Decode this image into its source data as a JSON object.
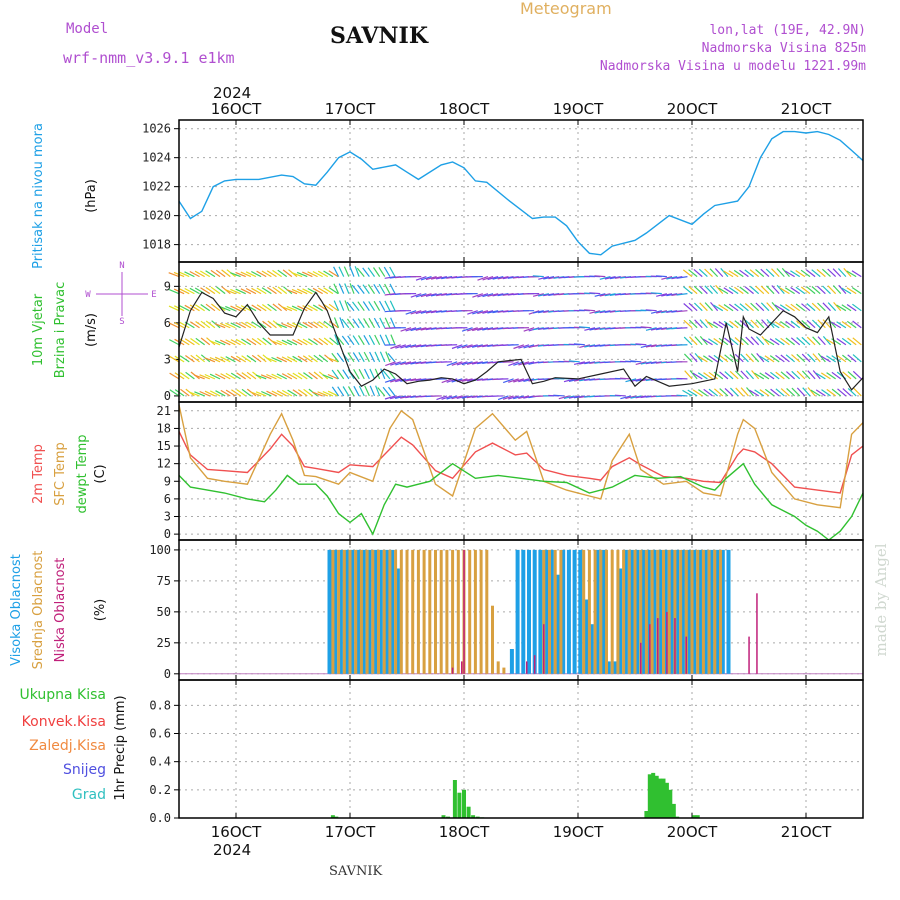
{
  "header": {
    "model_label": "Model",
    "model_name": "wrf-nmm_v3.9.1  e1km",
    "title": "SAVNIK",
    "product": "Meteogram",
    "location": "lon,lat (19E, 42.9N)",
    "elevation": "Nadmorska Visina 825m",
    "model_elevation": "Nadmorska Visina u modelu 1221.99m",
    "footer_title": "SAVNIK",
    "watermark": "made by Angel"
  },
  "colors": {
    "pressure": "#1ea0e6",
    "t2m": "#f05050",
    "sfc": "#d8a040",
    "dewpt": "#30c030",
    "high_cloud": "#1ea0e6",
    "mid_cloud": "#d8a040",
    "low_cloud": "#c0207a",
    "precip": "#30c030",
    "conv": "#f04040",
    "frozen": "#f08a40",
    "snow": "#5050e0",
    "hail": "#30c0c0",
    "title_purple": "#b04fd0",
    "meteogram_orange": "#e0b060"
  },
  "dates": {
    "year": "2024",
    "top": [
      "16OCT",
      "17OCT",
      "18OCT",
      "19OCT",
      "20OCT",
      "21OCT"
    ],
    "bottom": [
      "16OCT",
      "17OCT",
      "18OCT",
      "19OCT",
      "20OCT",
      "21OCT"
    ]
  },
  "chart_data": [
    {
      "type": "line",
      "panel": "pressure",
      "ylabel_main": "Pritisak na nivou mora",
      "unit": "(hPa)",
      "ylim": [
        1016.8,
        1026.6
      ],
      "yticks": [
        1018,
        1020,
        1022,
        1024,
        1026
      ],
      "x_range_days": [
        15.5,
        21.5
      ],
      "series": [
        {
          "values_x_days": [
            15.5,
            15.6,
            15.7,
            15.8,
            15.9,
            16.0,
            16.2,
            16.4,
            16.5,
            16.6,
            16.7,
            16.8,
            16.9,
            17.0,
            17.1,
            17.2,
            17.4,
            17.5,
            17.6,
            17.8,
            17.9,
            18.0,
            18.1,
            18.2,
            18.4,
            18.6,
            18.7,
            18.8,
            18.9,
            19.0,
            19.1,
            19.2,
            19.3,
            19.5,
            19.6,
            19.8,
            20.0,
            20.1,
            20.2,
            20.4,
            20.5,
            20.6,
            20.7,
            20.8,
            20.9,
            21.0,
            21.1,
            21.2,
            21.3,
            21.4,
            21.5
          ],
          "values": [
            1021.0,
            1019.8,
            1020.3,
            1022.0,
            1022.4,
            1022.5,
            1022.5,
            1022.8,
            1022.7,
            1022.2,
            1022.1,
            1023.0,
            1024.0,
            1024.4,
            1023.9,
            1023.2,
            1023.5,
            1023.0,
            1022.5,
            1023.5,
            1023.7,
            1023.3,
            1022.4,
            1022.3,
            1021.0,
            1019.8,
            1019.9,
            1019.9,
            1019.3,
            1018.2,
            1017.4,
            1017.3,
            1017.9,
            1018.3,
            1018.8,
            1020.0,
            1019.4,
            1020.1,
            1020.7,
            1021.0,
            1022.0,
            1024.0,
            1025.3,
            1025.8,
            1025.8,
            1025.7,
            1025.8,
            1025.6,
            1025.2,
            1024.5,
            1023.8
          ]
        }
      ]
    },
    {
      "type": "line",
      "panel": "wind",
      "ylabel_main": "10m Vjetar",
      "ylabel_sub": "Brzina i Pravac",
      "unit": "(m/s)",
      "compass": [
        "N",
        "W",
        "E",
        "S"
      ],
      "ylim": [
        -0.5,
        11
      ],
      "yticks": [
        0,
        3,
        6,
        9
      ],
      "series": [
        {
          "name": "speed",
          "values_x_days": [
            15.5,
            15.6,
            15.7,
            15.8,
            15.9,
            16.0,
            16.1,
            16.2,
            16.3,
            16.5,
            16.6,
            16.7,
            16.75,
            16.8,
            16.9,
            17.0,
            17.1,
            17.2,
            17.3,
            17.4,
            17.5,
            17.6,
            17.7,
            17.8,
            17.9,
            18.0,
            18.1,
            18.2,
            18.3,
            18.5,
            18.6,
            18.7,
            18.8,
            19.0,
            19.2,
            19.4,
            19.5,
            19.6,
            19.8,
            20.0,
            20.2,
            20.3,
            20.4,
            20.45,
            20.5,
            20.6,
            20.7,
            20.8,
            20.9,
            21.0,
            21.1,
            21.2,
            21.3,
            21.4,
            21.5
          ],
          "values": [
            4.0,
            7.0,
            8.5,
            8.0,
            6.8,
            6.5,
            7.5,
            6.0,
            5.0,
            5.0,
            7.2,
            8.5,
            7.8,
            7.0,
            4.5,
            2.0,
            0.8,
            1.3,
            2.2,
            1.8,
            1.0,
            1.2,
            1.3,
            1.5,
            1.4,
            1.0,
            1.3,
            2.0,
            2.8,
            3.0,
            1.0,
            1.2,
            1.5,
            1.4,
            1.8,
            2.2,
            0.8,
            1.6,
            0.8,
            1.0,
            1.4,
            6.0,
            2.0,
            6.5,
            5.5,
            5.0,
            6.0,
            7.0,
            6.5,
            5.6,
            5.2,
            6.5,
            2.0,
            0.5,
            1.5
          ]
        }
      ]
    },
    {
      "type": "line",
      "panel": "temperature",
      "ylabel_t2m": "2m Temp",
      "ylabel_sfc": "SFC Temp",
      "ylabel_dew": "dewpt Temp",
      "unit": "(C)",
      "ylim": [
        -1,
        22.5
      ],
      "yticks": [
        0,
        3,
        6,
        9,
        12,
        15,
        18,
        21
      ],
      "series": [
        {
          "name": "2m Temp",
          "values_x_days": [
            15.5,
            15.6,
            15.75,
            15.9,
            16.1,
            16.3,
            16.4,
            16.5,
            16.6,
            16.7,
            16.9,
            17.0,
            17.2,
            17.35,
            17.45,
            17.55,
            17.75,
            17.9,
            18.1,
            18.25,
            18.45,
            18.55,
            18.7,
            18.9,
            19.1,
            19.2,
            19.3,
            19.45,
            19.55,
            19.75,
            19.95,
            20.1,
            20.25,
            20.4,
            20.45,
            20.55,
            20.7,
            20.9,
            21.1,
            21.3,
            21.4,
            21.5
          ],
          "values": [
            17.5,
            13.5,
            11.0,
            10.8,
            10.5,
            14.5,
            17.0,
            15.0,
            11.5,
            11.2,
            10.5,
            11.8,
            11.5,
            14.5,
            16.5,
            15.2,
            10.8,
            9.5,
            14.0,
            15.5,
            13.5,
            13.8,
            11.0,
            10.0,
            9.5,
            9.2,
            11.5,
            13.0,
            11.8,
            9.8,
            9.5,
            9.0,
            8.8,
            13.5,
            14.5,
            14.0,
            12.0,
            8.0,
            7.5,
            7.0,
            13.5,
            15.0
          ]
        },
        {
          "name": "SFC Temp",
          "values_x_days": [
            15.5,
            15.6,
            15.75,
            15.9,
            16.1,
            16.3,
            16.4,
            16.5,
            16.6,
            16.7,
            16.9,
            17.0,
            17.2,
            17.35,
            17.45,
            17.55,
            17.75,
            17.9,
            18.1,
            18.25,
            18.45,
            18.55,
            18.7,
            18.9,
            19.1,
            19.2,
            19.3,
            19.45,
            19.55,
            19.75,
            19.95,
            20.1,
            20.25,
            20.4,
            20.45,
            20.55,
            20.7,
            20.9,
            21.1,
            21.3,
            21.4,
            21.5
          ],
          "values": [
            22.0,
            13.0,
            9.5,
            9.0,
            8.5,
            17.0,
            20.5,
            16.0,
            10.0,
            9.8,
            8.5,
            10.5,
            9.0,
            18.0,
            21.0,
            19.5,
            8.5,
            6.5,
            18.0,
            20.5,
            16.0,
            17.5,
            9.0,
            7.5,
            6.5,
            6.0,
            12.5,
            17.0,
            11.0,
            8.5,
            9.0,
            7.0,
            6.5,
            17.0,
            19.5,
            18.0,
            10.5,
            6.0,
            5.0,
            4.5,
            17.0,
            19.0
          ]
        },
        {
          "name": "dewpt Temp",
          "values_x_days": [
            15.5,
            15.6,
            15.75,
            15.9,
            16.1,
            16.25,
            16.35,
            16.45,
            16.55,
            16.7,
            16.8,
            16.9,
            17.0,
            17.1,
            17.2,
            17.3,
            17.4,
            17.5,
            17.6,
            17.7,
            17.9,
            18.1,
            18.3,
            18.5,
            18.7,
            18.9,
            19.1,
            19.3,
            19.5,
            19.7,
            19.9,
            20.1,
            20.2,
            20.3,
            20.45,
            20.55,
            20.7,
            20.9,
            21.0,
            21.1,
            21.2,
            21.3,
            21.4,
            21.5
          ],
          "values": [
            10.0,
            8.0,
            7.5,
            7.0,
            6.0,
            5.5,
            7.5,
            10.0,
            8.5,
            8.5,
            6.5,
            3.5,
            2.0,
            3.5,
            0.0,
            5.0,
            8.5,
            8.0,
            8.5,
            9.0,
            12.0,
            9.5,
            10.0,
            9.5,
            9.0,
            8.8,
            7.0,
            8.0,
            10.0,
            9.5,
            9.8,
            8.0,
            7.5,
            9.5,
            12.0,
            8.5,
            5.0,
            3.0,
            1.5,
            0.5,
            -1.0,
            0.5,
            3.0,
            7.0
          ]
        }
      ]
    },
    {
      "type": "bar",
      "panel": "cloud",
      "ylabel_high": "Visoka Oblacnost",
      "ylabel_mid": "Srednja Oblacnost",
      "ylabel_low": "Niska Oblacnost",
      "unit": "(%)",
      "ylim": [
        -5,
        108
      ],
      "yticks": [
        0,
        25,
        50,
        75,
        100
      ],
      "series": [
        {
          "name": "Visoka Oblacnost",
          "x_days": [
            16.82,
            16.87,
            16.92,
            16.97,
            17.02,
            17.07,
            17.12,
            17.17,
            17.22,
            17.27,
            17.32,
            17.37,
            17.42,
            18.42,
            18.47,
            18.52,
            18.57,
            18.62,
            18.67,
            18.72,
            18.77,
            18.82,
            18.87,
            18.92,
            18.97,
            19.02,
            19.07,
            19.12,
            19.17,
            19.22,
            19.27,
            19.32,
            19.37,
            19.42,
            19.47,
            19.52,
            19.57,
            19.62,
            19.67,
            19.72,
            19.77,
            19.82,
            19.87,
            19.92,
            19.97,
            20.02,
            20.07,
            20.12,
            20.17,
            20.22,
            20.27,
            20.32
          ],
          "values": [
            100,
            100,
            100,
            100,
            100,
            100,
            100,
            100,
            100,
            100,
            100,
            100,
            85,
            20,
            100,
            100,
            100,
            100,
            100,
            100,
            100,
            80,
            100,
            100,
            100,
            100,
            60,
            40,
            100,
            100,
            10,
            10,
            85,
            100,
            100,
            100,
            100,
            100,
            100,
            100,
            100,
            100,
            100,
            100,
            100,
            100,
            100,
            100,
            100,
            100,
            100,
            100
          ]
        },
        {
          "name": "Srednja Oblacnost",
          "x_days": [
            16.85,
            16.9,
            16.95,
            17.0,
            17.05,
            17.1,
            17.15,
            17.2,
            17.25,
            17.3,
            17.35,
            17.4,
            17.45,
            17.5,
            17.55,
            17.6,
            17.65,
            17.7,
            17.75,
            17.8,
            17.85,
            17.9,
            17.95,
            18.0,
            18.05,
            18.1,
            18.15,
            18.2,
            18.25,
            18.3,
            18.35,
            18.7,
            18.75,
            18.8,
            18.85,
            19.05,
            19.1,
            19.15,
            19.2,
            19.25,
            19.3,
            19.35,
            19.4,
            19.45,
            19.5,
            19.55,
            19.6,
            19.65,
            19.7,
            19.75,
            19.8,
            19.85,
            19.9,
            19.95,
            20.0,
            20.05,
            20.1,
            20.15,
            20.2,
            20.25
          ],
          "values": [
            100,
            100,
            100,
            100,
            100,
            100,
            100,
            100,
            100,
            100,
            100,
            100,
            100,
            100,
            100,
            100,
            100,
            100,
            100,
            100,
            100,
            100,
            100,
            100,
            100,
            100,
            100,
            100,
            55,
            10,
            5,
            100,
            100,
            100,
            100,
            100,
            100,
            100,
            100,
            100,
            100,
            100,
            100,
            100,
            100,
            100,
            100,
            100,
            100,
            100,
            100,
            100,
            100,
            100,
            100,
            100,
            100,
            100,
            100,
            100
          ]
        },
        {
          "name": "Niska Oblacnost",
          "x_days": [
            17.9,
            17.98,
            18.0,
            18.55,
            18.62,
            18.7,
            19.55,
            19.63,
            19.7,
            19.78,
            19.85,
            19.95,
            20.5,
            20.57
          ],
          "values": [
            5,
            10,
            100,
            10,
            15,
            40,
            25,
            40,
            45,
            50,
            45,
            30,
            30,
            65
          ]
        }
      ]
    },
    {
      "type": "bar",
      "panel": "precip",
      "legend": [
        "Ukupna Kisa",
        "Konvek.Kisa",
        "Zaledj.Kisa",
        "Snijeg",
        "Grad"
      ],
      "ylabel": "1hr Precip (mm)",
      "ylim": [
        0,
        0.98
      ],
      "yticks": [
        0.0,
        0.2,
        0.4,
        0.6,
        0.8
      ],
      "series": [
        {
          "name": "Ukupna Kisa",
          "x_days": [
            16.85,
            16.88,
            17.82,
            17.86,
            17.92,
            17.96,
            18.0,
            18.04,
            18.08,
            18.12,
            18.16,
            19.6,
            19.63,
            19.66,
            19.69,
            19.72,
            19.75,
            19.78,
            19.81,
            19.84,
            19.87,
            20.02,
            20.05
          ],
          "values": [
            0.02,
            0.01,
            0.02,
            0.01,
            0.27,
            0.18,
            0.2,
            0.08,
            0.02,
            0.01,
            0.005,
            0.05,
            0.31,
            0.32,
            0.3,
            0.28,
            0.28,
            0.25,
            0.2,
            0.1,
            0.01,
            0.02,
            0.02
          ]
        }
      ]
    }
  ]
}
